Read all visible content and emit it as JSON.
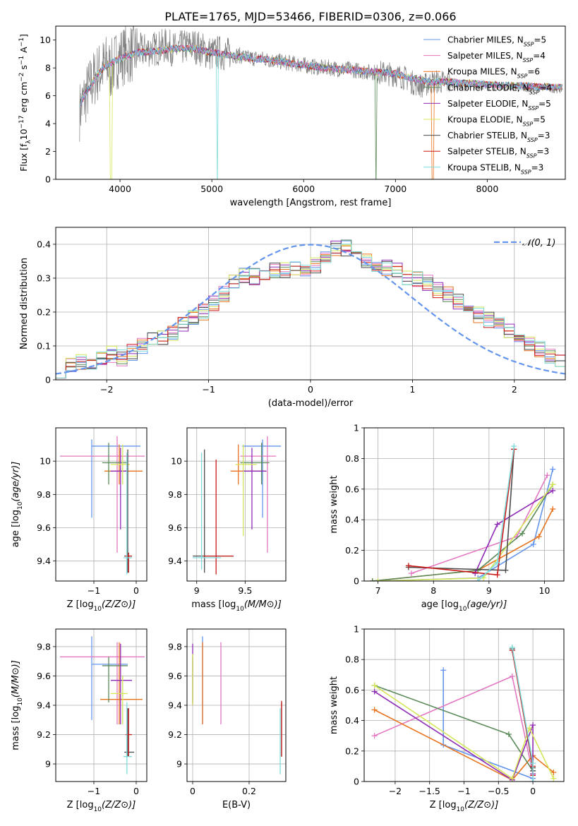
{
  "figure_title": "PLATE=1765, MJD=53466, FIBERID=0306, z=0.066",
  "colors": {
    "cornflowerblue": "#6495ED",
    "hotpink": "#E377C2",
    "orange": "#E8731D",
    "sage": "#5A8A5A",
    "purple": "#8E2BB5",
    "yellowgreen": "#D6E65A",
    "dimgray": "#4A4A4A",
    "red": "#CC1A1A",
    "turquoise": "#7FDCDC",
    "data_gray": "#808080",
    "grid": "#B0B0B0"
  },
  "chart_data": [
    {
      "id": "spectrum",
      "type": "line",
      "xlabel": "wavelength [Angstrom, rest frame]",
      "ylabel": "Flux [f_λ 10^-17 erg cm^-2 s^-1 A^-1]",
      "xlim": [
        3300,
        8850
      ],
      "ylim": [
        0,
        11
      ],
      "xticks": [
        4000,
        5000,
        6000,
        7000,
        8000
      ],
      "yticks": [
        0,
        2,
        4,
        6,
        8,
        10
      ],
      "grid": false,
      "legend_position": "top-right",
      "legend": [
        {
          "base": "Chabrier MILES, N",
          "n": "5",
          "color": "cornflowerblue"
        },
        {
          "base": "Salpeter MILES, N",
          "n": "4",
          "color": "hotpink"
        },
        {
          "base": "Kroupa MILES, N",
          "n": "6",
          "color": "orange"
        },
        {
          "base": "Chabrier ELODIE, N",
          "n": "4",
          "color": "sage"
        },
        {
          "base": "Salpeter ELODIE, N",
          "n": "5",
          "color": "purple"
        },
        {
          "base": "Kroupa ELODIE, N",
          "n": "5",
          "color": "yellowgreen"
        },
        {
          "base": "Chabrier STELIB, N",
          "n": "3",
          "color": "dimgray"
        },
        {
          "base": "Salpeter STELIB, N",
          "n": "3",
          "color": "red"
        },
        {
          "base": "Kroupa STELIB, N",
          "n": "3",
          "color": "turquoise"
        }
      ],
      "legend_subscript": "SSP",
      "data_series": {
        "name": "",
        "x": [
          3560,
          3600,
          3650,
          3700,
          3750,
          3800,
          3850,
          3900,
          3950,
          4000,
          4100,
          4200,
          4300,
          4400,
          4500,
          4600,
          4700,
          4800,
          4900,
          5000,
          5100,
          5200,
          5300,
          5400,
          5500,
          5600,
          5700,
          5800,
          5900,
          6000,
          6100,
          6200,
          6300,
          6400,
          6500,
          6600,
          6700,
          6800,
          6900,
          7000,
          7100,
          7200,
          7300,
          7400,
          7500,
          7600,
          7700,
          7800,
          7900,
          8000,
          8200,
          8400,
          8600,
          8800
        ],
        "y": [
          4.9,
          5.6,
          6.4,
          7.0,
          7.6,
          7.9,
          8.3,
          7.8,
          8.5,
          8.8,
          9.0,
          9.2,
          9.3,
          9.4,
          9.6,
          9.3,
          9.5,
          9.6,
          9.3,
          9.0,
          9.1,
          8.9,
          8.9,
          8.7,
          8.7,
          8.6,
          8.5,
          8.4,
          8.3,
          8.2,
          8.1,
          8.0,
          8.0,
          7.9,
          7.9,
          7.8,
          7.7,
          7.7,
          7.6,
          7.5,
          7.3,
          6.9,
          6.7,
          7.0,
          7.0,
          6.9,
          6.8,
          6.8,
          6.8,
          6.7,
          6.7,
          6.6,
          6.6,
          6.5
        ]
      },
      "model_series": {
        "x": [
          3560,
          3650,
          3750,
          3850,
          3950,
          4050,
          4200,
          4400,
          4600,
          4800,
          5000,
          5200,
          5400,
          5600,
          5800,
          6000,
          6200,
          6400,
          6600,
          6800,
          7000,
          7200,
          7400,
          7600,
          8000,
          8400,
          8800
        ],
        "y": [
          5.4,
          6.4,
          7.5,
          8.2,
          8.5,
          8.8,
          9.1,
          9.2,
          9.4,
          9.4,
          9.1,
          8.9,
          8.7,
          8.6,
          8.4,
          8.2,
          8.0,
          7.9,
          7.8,
          7.7,
          7.6,
          7.2,
          7.0,
          7.0,
          6.8,
          6.7,
          6.6
        ]
      }
    },
    {
      "id": "residual-histogram",
      "type": "bar",
      "xlabel": "(data-model)/error",
      "ylabel": "Normed distribution",
      "xlim": [
        -2.5,
        2.5
      ],
      "ylim": [
        0,
        0.45
      ],
      "xticks": [
        -2,
        -1,
        0,
        1,
        2
      ],
      "yticks": [
        0.0,
        0.1,
        0.2,
        0.3,
        0.4
      ],
      "grid": true,
      "legend_position": "top-right",
      "gaussian_label": "𝒩(0, 1)",
      "bin_width": 0.1,
      "bin_start": -2.5,
      "histogram": [
        0.03,
        0.045,
        0.055,
        0.05,
        0.06,
        0.075,
        0.065,
        0.08,
        0.1,
        0.115,
        0.125,
        0.14,
        0.16,
        0.185,
        0.2,
        0.225,
        0.255,
        0.285,
        0.31,
        0.305,
        0.3,
        0.32,
        0.325,
        0.33,
        0.32,
        0.34,
        0.36,
        0.385,
        0.39,
        0.36,
        0.355,
        0.34,
        0.33,
        0.325,
        0.305,
        0.3,
        0.285,
        0.265,
        0.25,
        0.23,
        0.21,
        0.19,
        0.175,
        0.16,
        0.14,
        0.125,
        0.105,
        0.09,
        0.07,
        0.055
      ]
    },
    {
      "id": "age-vs-z",
      "type": "scatter",
      "xlabel": "Z [log10(Z/Z⊙)]",
      "ylabel": "age  [log10(age/yr)]",
      "xlim": [
        -1.9,
        0.25
      ],
      "ylim": [
        9.28,
        10.2
      ],
      "xticks": [
        -1,
        0
      ],
      "yticks": [
        9.4,
        9.6,
        9.8,
        10.0
      ],
      "grid": true,
      "points": [
        {
          "c": "cornflowerblue",
          "x": -1.05,
          "y": 10.09,
          "xlo": -1.05,
          "xhi": 0.1,
          "ylo": 9.66,
          "yhi": 10.13
        },
        {
          "c": "hotpink",
          "x": -0.45,
          "y": 10.03,
          "xlo": -1.8,
          "xhi": 0.2,
          "ylo": 9.45,
          "yhi": 10.15
        },
        {
          "c": "orange",
          "x": -0.4,
          "y": 9.94,
          "xlo": -0.75,
          "xhi": 0.15,
          "ylo": 9.86,
          "yhi": 10.1
        },
        {
          "c": "sage",
          "x": -0.65,
          "y": 9.99,
          "xlo": -0.8,
          "xhi": -0.2,
          "ylo": 9.86,
          "yhi": 10.11
        },
        {
          "c": "purple",
          "x": -0.37,
          "y": 9.94,
          "xlo": -0.6,
          "xhi": -0.2,
          "ylo": 9.59,
          "yhi": 10.08
        },
        {
          "c": "yellowgreen",
          "x": -0.32,
          "y": 9.98,
          "xlo": -0.6,
          "xhi": -0.15,
          "ylo": 9.86,
          "yhi": 10.1
        },
        {
          "c": "dimgray",
          "x": -0.2,
          "y": 9.43,
          "xlo": -0.28,
          "xhi": -0.1,
          "ylo": 9.33,
          "yhi": 10.07
        },
        {
          "c": "red",
          "x": -0.18,
          "y": 9.43,
          "xlo": -0.26,
          "xhi": -0.1,
          "ylo": 9.33,
          "yhi": 9.45
        },
        {
          "c": "turquoise",
          "x": -0.22,
          "y": 9.42,
          "xlo": -0.3,
          "xhi": -0.1,
          "ylo": 9.32,
          "yhi": 10.05
        }
      ]
    },
    {
      "id": "age-vs-mass",
      "type": "scatter",
      "xlabel": "mass [log10(M/M⊙)]",
      "ylabel": "",
      "xlim": [
        8.9,
        9.92
      ],
      "ylim": [
        9.28,
        10.2
      ],
      "xticks": [
        9.0,
        9.5
      ],
      "yticks": [
        9.4,
        9.6,
        9.8,
        10.0
      ],
      "grid": true,
      "points": [
        {
          "c": "cornflowerblue",
          "x": 9.68,
          "y": 10.09,
          "xlo": 9.47,
          "xhi": 9.87,
          "ylo": 9.66,
          "yhi": 10.13
        },
        {
          "c": "hotpink",
          "x": 9.73,
          "y": 10.03,
          "xlo": 9.45,
          "xhi": 9.82,
          "ylo": 9.45,
          "yhi": 10.15
        },
        {
          "c": "orange",
          "x": 9.43,
          "y": 9.94,
          "xlo": 9.35,
          "xhi": 9.7,
          "ylo": 9.86,
          "yhi": 10.1
        },
        {
          "c": "sage",
          "x": 9.67,
          "y": 9.99,
          "xlo": 9.45,
          "xhi": 9.75,
          "ylo": 9.86,
          "yhi": 10.11
        },
        {
          "c": "purple",
          "x": 9.57,
          "y": 9.94,
          "xlo": 9.47,
          "xhi": 9.72,
          "ylo": 9.59,
          "yhi": 10.08
        },
        {
          "c": "yellowgreen",
          "x": 9.48,
          "y": 9.98,
          "xlo": 9.4,
          "xhi": 9.62,
          "ylo": 9.55,
          "yhi": 10.1
        },
        {
          "c": "dimgray",
          "x": 9.08,
          "y": 9.43,
          "xlo": 8.96,
          "xhi": 9.38,
          "ylo": 9.33,
          "yhi": 10.07
        },
        {
          "c": "red",
          "x": 9.2,
          "y": 9.43,
          "xlo": 9.07,
          "xhi": 9.38,
          "ylo": 9.32,
          "yhi": 10.01
        },
        {
          "c": "turquoise",
          "x": 9.05,
          "y": 9.42,
          "xlo": 8.96,
          "xhi": 9.25,
          "ylo": 9.35,
          "yhi": 10.05
        }
      ]
    },
    {
      "id": "weight-vs-age",
      "type": "line",
      "xlabel": "age  [log10(age/yr)]",
      "ylabel": "mass weight",
      "xlim": [
        6.75,
        10.35
      ],
      "ylim": [
        0,
        1.0
      ],
      "xticks": [
        7,
        8,
        9,
        10
      ],
      "yticks": [
        0.0,
        0.2,
        0.4,
        0.6,
        0.8,
        1.0
      ],
      "grid": true,
      "series": [
        {
          "c": "cornflowerblue",
          "x": [
            6.9,
            8.8,
            9.8,
            10.15
          ],
          "y": [
            0.0,
            0.02,
            0.24,
            0.73
          ]
        },
        {
          "c": "hotpink",
          "x": [
            7.6,
            9.5,
            10.05
          ],
          "y": [
            0.05,
            0.29,
            0.69
          ]
        },
        {
          "c": "orange",
          "x": [
            6.9,
            8.8,
            9.9,
            10.15
          ],
          "y": [
            0.0,
            0.07,
            0.29,
            0.47
          ]
        },
        {
          "c": "sage",
          "x": [
            6.9,
            8.8,
            9.6,
            10.15
          ],
          "y": [
            0.0,
            0.07,
            0.31,
            0.63
          ]
        },
        {
          "c": "purple",
          "x": [
            8.75,
            9.15,
            10.15
          ],
          "y": [
            0.05,
            0.37,
            0.59
          ]
        },
        {
          "c": "yellowgreen",
          "x": [
            7.0,
            8.9,
            10.15
          ],
          "y": [
            0.0,
            0.02,
            0.63
          ]
        },
        {
          "c": "dimgray",
          "x": [
            7.55,
            9.3,
            9.45
          ],
          "y": [
            0.09,
            0.07,
            0.86
          ]
        },
        {
          "c": "red",
          "x": [
            7.55,
            9.15,
            9.45
          ],
          "y": [
            0.1,
            0.04,
            0.86
          ]
        },
        {
          "c": "turquoise",
          "x": [
            8.8,
            9.15,
            9.45
          ],
          "y": [
            0.0,
            0.12,
            0.88
          ]
        }
      ]
    },
    {
      "id": "mass-vs-z",
      "type": "scatter",
      "xlabel": "Z [log10(Z/Z⊙)]",
      "ylabel": "mass [log10(M/M⊙)]",
      "xlim": [
        -1.9,
        0.25
      ],
      "ylim": [
        8.88,
        9.92
      ],
      "xticks": [
        -1,
        0
      ],
      "yticks": [
        9.0,
        9.2,
        9.4,
        9.6,
        9.8
      ],
      "grid": true,
      "points": [
        {
          "c": "cornflowerblue",
          "x": -1.05,
          "y": 9.68,
          "xlo": -1.05,
          "xhi": -0.2,
          "ylo": 9.3,
          "yhi": 9.87
        },
        {
          "c": "hotpink",
          "x": -0.45,
          "y": 9.73,
          "xlo": -1.8,
          "xhi": 0.2,
          "ylo": 9.27,
          "yhi": 9.83
        },
        {
          "c": "orange",
          "x": -0.4,
          "y": 9.44,
          "xlo": -0.85,
          "xhi": 0.15,
          "ylo": 9.27,
          "yhi": 9.83
        },
        {
          "c": "sage",
          "x": -0.65,
          "y": 9.67,
          "xlo": -0.8,
          "xhi": -0.2,
          "ylo": 9.42,
          "yhi": 9.73
        },
        {
          "c": "purple",
          "x": -0.37,
          "y": 9.57,
          "xlo": -0.6,
          "xhi": -0.1,
          "ylo": 9.27,
          "yhi": 9.82
        },
        {
          "c": "yellowgreen",
          "x": -0.32,
          "y": 9.48,
          "xlo": -0.6,
          "xhi": -0.2,
          "ylo": 9.27,
          "yhi": 9.6
        },
        {
          "c": "dimgray",
          "x": -0.2,
          "y": 9.08,
          "xlo": -0.28,
          "xhi": -0.05,
          "ylo": 9.05,
          "yhi": 9.38
        },
        {
          "c": "red",
          "x": -0.18,
          "y": 9.2,
          "xlo": -0.25,
          "xhi": -0.1,
          "ylo": 9.05,
          "yhi": 9.38
        },
        {
          "c": "turquoise",
          "x": -0.22,
          "y": 9.05,
          "xlo": -0.3,
          "xhi": -0.1,
          "ylo": 8.93,
          "yhi": 9.42
        }
      ]
    },
    {
      "id": "mass-vs-ebv",
      "type": "scatter",
      "xlabel": "E(B-V)",
      "ylabel": "",
      "xlim": [
        -0.02,
        0.33
      ],
      "ylim": [
        8.88,
        9.92
      ],
      "xticks": [
        0.0,
        0.2
      ],
      "yticks": [
        9.0,
        9.2,
        9.4,
        9.6,
        9.8
      ],
      "grid": true,
      "points": [
        {
          "c": "cornflowerblue",
          "x": 0.035,
          "y": 9.6,
          "xlo": 0.035,
          "xhi": 0.035,
          "ylo": 9.27,
          "yhi": 9.87
        },
        {
          "c": "hotpink",
          "x": 0.1,
          "y": 9.5,
          "xlo": 0.1,
          "xhi": 0.1,
          "ylo": 9.27,
          "yhi": 9.83
        },
        {
          "c": "orange",
          "x": 0.035,
          "y": 9.5,
          "xlo": 0.035,
          "xhi": 0.035,
          "ylo": 9.27,
          "yhi": 9.83
        },
        {
          "c": "sage",
          "x": 0.0,
          "y": 9.6,
          "xlo": 0.0,
          "xhi": 0.0,
          "ylo": 9.42,
          "yhi": 9.73
        },
        {
          "c": "purple",
          "x": 0.0,
          "y": 9.6,
          "xlo": 0.0,
          "xhi": 0.0,
          "ylo": 9.4,
          "yhi": 9.82
        },
        {
          "c": "yellowgreen",
          "x": 0.0,
          "y": 9.55,
          "xlo": 0.0,
          "xhi": 0.0,
          "ylo": 9.4,
          "yhi": 9.75
        },
        {
          "c": "dimgray",
          "x": 0.315,
          "y": 9.2,
          "xlo": 0.315,
          "xhi": 0.315,
          "ylo": 9.05,
          "yhi": 9.42
        },
        {
          "c": "red",
          "x": 0.315,
          "y": 9.2,
          "xlo": 0.315,
          "xhi": 0.315,
          "ylo": 9.05,
          "yhi": 9.43
        },
        {
          "c": "turquoise",
          "x": 0.31,
          "y": 9.1,
          "xlo": 0.31,
          "xhi": 0.31,
          "ylo": 8.93,
          "yhi": 9.38
        }
      ]
    },
    {
      "id": "weight-vs-z",
      "type": "line",
      "xlabel": "Z [log10(Z/Z⊙)]",
      "ylabel": "mass weight",
      "xlim": [
        -2.45,
        0.45
      ],
      "ylim": [
        0,
        1.0
      ],
      "xticks": [
        -2.0,
        -1.5,
        -1.0,
        -0.5,
        0.0
      ],
      "yticks": [
        0.0,
        0.2,
        0.4,
        0.6,
        0.8,
        1.0
      ],
      "grid": true,
      "series": [
        {
          "c": "cornflowerblue",
          "x": [
            -1.3,
            -1.3,
            0.0,
            0.0
          ],
          "y": [
            0.73,
            0.24,
            0.02,
            0.0
          ]
        },
        {
          "c": "hotpink",
          "x": [
            -2.3,
            -0.3,
            0.0
          ],
          "y": [
            0.3,
            0.69,
            0.05
          ]
        },
        {
          "c": "orange",
          "x": [
            -2.3,
            -0.3,
            0.0,
            0.3
          ],
          "y": [
            0.47,
            0.01,
            0.17,
            0.06
          ]
        },
        {
          "c": "sage",
          "x": [
            -2.3,
            -0.35,
            0.0
          ],
          "y": [
            0.63,
            0.31,
            0.07
          ]
        },
        {
          "c": "purple",
          "x": [
            -2.3,
            -0.3,
            0.0,
            0.0
          ],
          "y": [
            0.59,
            0.01,
            0.37,
            0.05
          ]
        },
        {
          "c": "yellowgreen",
          "x": [
            -2.3,
            -0.3,
            -0.05,
            0.3
          ],
          "y": [
            0.63,
            0.02,
            0.35,
            0.02
          ]
        },
        {
          "c": "dimgray",
          "x": [
            -0.3,
            0.0,
            0.0
          ],
          "y": [
            0.87,
            0.09,
            0.07
          ]
        },
        {
          "c": "red",
          "x": [
            -0.3,
            0.0,
            0.0
          ],
          "y": [
            0.86,
            0.1,
            0.04
          ]
        },
        {
          "c": "turquoise",
          "x": [
            -0.3,
            0.0,
            0.0
          ],
          "y": [
            0.88,
            0.12,
            0.0
          ]
        }
      ]
    }
  ]
}
